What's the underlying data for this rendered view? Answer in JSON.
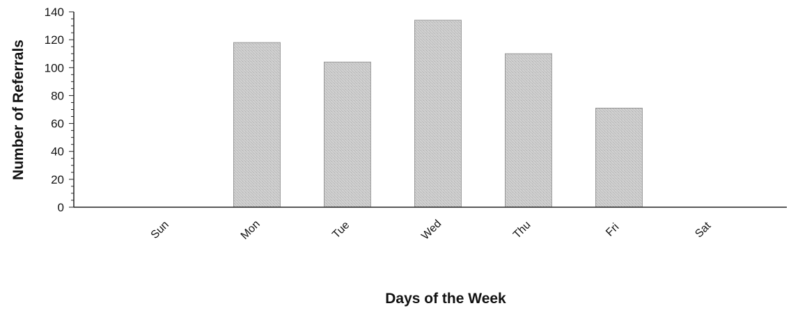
{
  "chart_data": {
    "type": "bar",
    "categories": [
      "Sun",
      "Mon",
      "Tue",
      "Wed",
      "Thu",
      "Fri",
      "Sat"
    ],
    "values": [
      0,
      118,
      104,
      134,
      110,
      71,
      0
    ],
    "title": "",
    "xlabel": "Days of the Week",
    "ylabel": "Number of Referrals",
    "ylim": [
      0,
      140
    ],
    "yticks": [
      0,
      20,
      40,
      60,
      80,
      100,
      120,
      140
    ],
    "grid": false,
    "legend": "none",
    "colors": {
      "bar_fill": "#c6c6c6",
      "bar_edge": "#9a9a9a",
      "axis": "#222222",
      "text": "#111111"
    }
  }
}
